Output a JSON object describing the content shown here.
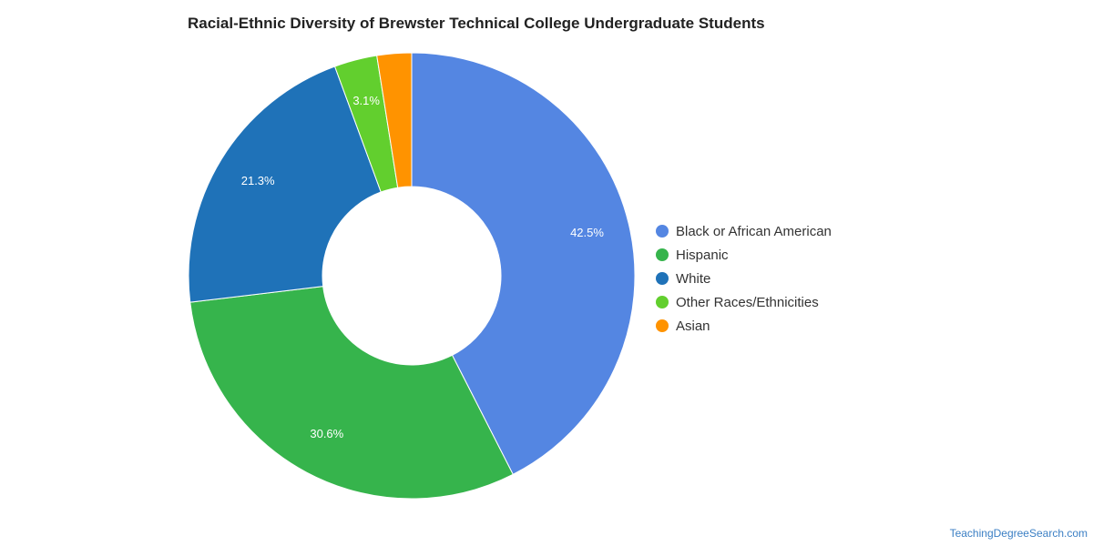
{
  "chart_data": {
    "type": "pie",
    "title": "Racial-Ethnic Diversity of Brewster Technical College Undergraduate Students",
    "donut": true,
    "legend_position": "right",
    "categories": [
      "Black or African American",
      "Hispanic",
      "White",
      "Other Races/Ethnicities",
      "Asian"
    ],
    "values": [
      42.5,
      30.6,
      21.3,
      3.1,
      2.5
    ],
    "data_labels": [
      "42.5%",
      "30.6%",
      "21.3%",
      "3.1%",
      ""
    ],
    "colors": [
      "#5486e2",
      "#36b44c",
      "#1f72b8",
      "#62cf2e",
      "#ff9300"
    ]
  },
  "footer": {
    "source": "TeachingDegreeSearch.com"
  }
}
